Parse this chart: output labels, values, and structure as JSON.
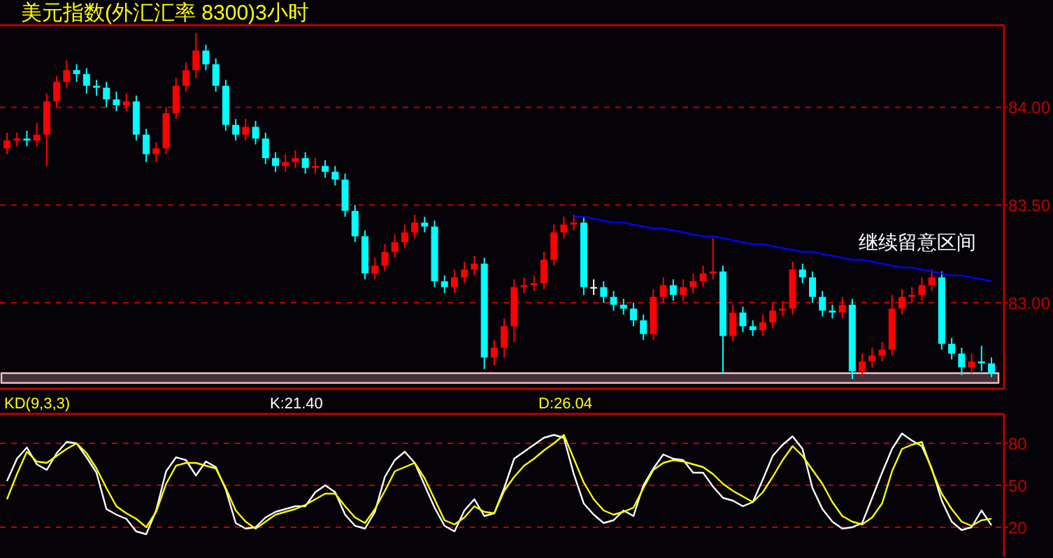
{
  "chart_data": [
    {
      "type": "candlestick",
      "title": "美元指数(外汇汇率 8300)3小时",
      "categories": [
        null,
        null,
        null,
        null,
        null,
        null,
        null,
        null,
        null,
        null,
        null,
        null,
        null,
        null,
        null,
        null,
        null,
        null,
        null,
        null,
        null,
        null,
        null,
        null,
        null,
        null,
        null,
        null,
        null,
        null,
        null,
        null,
        null,
        null,
        null,
        null,
        null,
        null,
        null,
        null,
        null,
        null,
        null,
        null,
        null,
        null,
        null,
        null,
        null,
        null,
        null,
        null,
        null,
        null,
        null,
        null,
        null,
        null,
        null,
        null,
        null,
        null,
        null,
        null,
        null,
        null,
        null,
        null,
        null,
        null,
        null,
        null,
        null,
        null,
        null,
        null,
        null,
        null,
        null,
        null,
        null,
        null,
        null,
        null,
        null,
        null,
        null,
        null,
        null,
        null,
        null,
        null,
        null,
        null,
        null,
        null,
        null,
        null,
        null,
        null
      ],
      "ohlc": [
        [
          83.79,
          83.87,
          83.76,
          83.83
        ],
        [
          83.83,
          83.87,
          83.8,
          83.84
        ],
        [
          83.84,
          83.88,
          83.8,
          83.83
        ],
        [
          83.83,
          83.92,
          83.8,
          83.86
        ],
        [
          83.86,
          84.07,
          83.7,
          84.03
        ],
        [
          84.03,
          84.16,
          84.0,
          84.13
        ],
        [
          84.13,
          84.24,
          84.1,
          84.19
        ],
        [
          84.19,
          84.22,
          84.13,
          84.17
        ],
        [
          84.17,
          84.2,
          84.07,
          84.11
        ],
        [
          84.11,
          84.14,
          84.06,
          84.1
        ],
        [
          84.1,
          84.13,
          84.0,
          84.04
        ],
        [
          84.04,
          84.08,
          83.98,
          84.01
        ],
        [
          84.01,
          84.07,
          83.98,
          84.03
        ],
        [
          84.03,
          84.06,
          83.83,
          83.86
        ],
        [
          83.86,
          83.89,
          83.72,
          83.76
        ],
        [
          83.76,
          83.82,
          83.72,
          83.79
        ],
        [
          83.79,
          84.0,
          83.76,
          83.97
        ],
        [
          83.97,
          84.15,
          83.94,
          84.11
        ],
        [
          84.11,
          84.23,
          84.08,
          84.19
        ],
        [
          84.19,
          84.38,
          84.15,
          84.29
        ],
        [
          84.29,
          84.32,
          84.19,
          84.22
        ],
        [
          84.22,
          84.25,
          84.08,
          84.11
        ],
        [
          84.11,
          84.14,
          83.88,
          83.91
        ],
        [
          83.91,
          83.94,
          83.83,
          83.86
        ],
        [
          83.86,
          83.94,
          83.83,
          83.9
        ],
        [
          83.9,
          83.93,
          83.81,
          83.84
        ],
        [
          83.84,
          83.87,
          83.71,
          83.74
        ],
        [
          83.74,
          83.77,
          83.67,
          83.7
        ],
        [
          83.7,
          83.76,
          83.67,
          83.72
        ],
        [
          83.72,
          83.78,
          83.69,
          83.74
        ],
        [
          83.74,
          83.77,
          83.66,
          83.69
        ],
        [
          83.69,
          83.74,
          83.66,
          83.7
        ],
        [
          83.7,
          83.73,
          83.64,
          83.67
        ],
        [
          83.67,
          83.7,
          83.6,
          83.63
        ],
        [
          83.63,
          83.66,
          83.44,
          83.47
        ],
        [
          83.47,
          83.5,
          83.31,
          83.34
        ],
        [
          83.34,
          83.37,
          83.12,
          83.15
        ],
        [
          83.15,
          83.23,
          83.12,
          83.19
        ],
        [
          83.19,
          83.3,
          83.16,
          83.26
        ],
        [
          83.26,
          83.35,
          83.23,
          83.31
        ],
        [
          83.31,
          83.4,
          83.28,
          83.36
        ],
        [
          83.36,
          83.45,
          83.33,
          83.41
        ],
        [
          83.41,
          83.44,
          83.36,
          83.39
        ],
        [
          83.39,
          83.42,
          83.08,
          83.11
        ],
        [
          83.11,
          83.14,
          83.05,
          83.08
        ],
        [
          83.08,
          83.17,
          83.05,
          83.13
        ],
        [
          83.13,
          83.21,
          83.1,
          83.17
        ],
        [
          83.17,
          83.24,
          83.14,
          83.2
        ],
        [
          83.2,
          83.23,
          82.66,
          82.72
        ],
        [
          82.72,
          82.81,
          82.68,
          82.77
        ],
        [
          82.77,
          82.92,
          82.72,
          82.88
        ],
        [
          82.88,
          83.12,
          82.8,
          83.08
        ],
        [
          83.08,
          83.13,
          83.05,
          83.09
        ],
        [
          83.09,
          83.14,
          83.06,
          83.1
        ],
        [
          83.1,
          83.26,
          83.07,
          83.22
        ],
        [
          83.22,
          83.4,
          83.19,
          83.36
        ],
        [
          83.36,
          83.44,
          83.33,
          83.4
        ],
        [
          83.4,
          83.45,
          83.37,
          83.41
        ],
        [
          83.41,
          83.44,
          83.04,
          83.08
        ],
        [
          83.08,
          83.12,
          83.04,
          83.08
        ],
        [
          83.08,
          83.11,
          83.0,
          83.03
        ],
        [
          83.03,
          83.06,
          82.96,
          82.99
        ],
        [
          82.99,
          83.02,
          82.94,
          82.97
        ],
        [
          82.97,
          83.0,
          82.88,
          82.91
        ],
        [
          82.91,
          82.94,
          82.81,
          82.84
        ],
        [
          82.84,
          83.07,
          82.81,
          83.03
        ],
        [
          83.03,
          83.13,
          83.0,
          83.09
        ],
        [
          83.09,
          83.12,
          83.01,
          83.04
        ],
        [
          83.04,
          83.12,
          83.01,
          83.08
        ],
        [
          83.08,
          83.15,
          83.05,
          83.11
        ],
        [
          83.11,
          83.19,
          83.08,
          83.15
        ],
        [
          83.15,
          83.33,
          83.12,
          83.16
        ],
        [
          83.16,
          83.19,
          82.64,
          82.83
        ],
        [
          82.83,
          82.99,
          82.8,
          82.95
        ],
        [
          82.95,
          82.98,
          82.85,
          82.88
        ],
        [
          82.88,
          82.91,
          82.83,
          82.86
        ],
        [
          82.86,
          82.94,
          82.83,
          82.9
        ],
        [
          82.9,
          83.0,
          82.87,
          82.96
        ],
        [
          82.96,
          83.01,
          82.93,
          82.97
        ],
        [
          82.97,
          83.21,
          82.94,
          83.17
        ],
        [
          83.17,
          83.2,
          83.1,
          83.13
        ],
        [
          83.13,
          83.16,
          83.0,
          83.03
        ],
        [
          83.03,
          83.06,
          82.93,
          82.96
        ],
        [
          82.96,
          82.99,
          82.92,
          82.95
        ],
        [
          82.95,
          83.03,
          82.92,
          82.99
        ],
        [
          82.99,
          83.02,
          82.61,
          82.65
        ],
        [
          82.65,
          82.74,
          82.62,
          82.7
        ],
        [
          82.7,
          82.77,
          82.67,
          82.73
        ],
        [
          82.73,
          82.8,
          82.7,
          82.76
        ],
        [
          82.76,
          83.04,
          82.73,
          82.97
        ],
        [
          82.97,
          83.07,
          82.94,
          83.03
        ],
        [
          83.03,
          83.08,
          83.0,
          83.04
        ],
        [
          83.04,
          83.13,
          83.01,
          83.09
        ],
        [
          83.09,
          83.17,
          83.06,
          83.13
        ],
        [
          83.13,
          83.16,
          82.76,
          82.79
        ],
        [
          82.79,
          82.82,
          82.71,
          82.74
        ],
        [
          82.74,
          82.77,
          82.63,
          82.67
        ],
        [
          82.67,
          82.74,
          82.64,
          82.7
        ],
        [
          82.7,
          82.78,
          82.65,
          82.69
        ],
        [
          82.69,
          82.72,
          82.62,
          82.64
        ]
      ],
      "colors": [
        "#ff0000",
        "#ff0000",
        "#00ffff",
        "#ff0000",
        "#ff0000",
        "#ff0000",
        "#ff0000",
        "#00ffff",
        "#00ffff",
        "#00ffff",
        "#00ffff",
        "#00ffff",
        "#ff0000",
        "#00ffff",
        "#00ffff",
        "#ff0000",
        "#ff0000",
        "#ff0000",
        "#ff0000",
        "#ff0000",
        "#00ffff",
        "#00ffff",
        "#00ffff",
        "#00ffff",
        "#ff0000",
        "#00ffff",
        "#00ffff",
        "#00ffff",
        "#ff0000",
        "#ff0000",
        "#00ffff",
        "#ff0000",
        "#00ffff",
        "#00ffff",
        "#00ffff",
        "#00ffff",
        "#00ffff",
        "#ff0000",
        "#ff0000",
        "#ff0000",
        "#ff0000",
        "#ff0000",
        "#00ffff",
        "#00ffff",
        "#00ffff",
        "#ff0000",
        "#ff0000",
        "#ff0000",
        "#00ffff",
        "#ff0000",
        "#ff0000",
        "#ff0000",
        "#ff0000",
        "#ff0000",
        "#ff0000",
        "#ff0000",
        "#ff0000",
        "#ff0000",
        "#00ffff",
        "#ffffff",
        "#00ffff",
        "#00ffff",
        "#00ffff",
        "#00ffff",
        "#00ffff",
        "#ff0000",
        "#ff0000",
        "#00ffff",
        "#ff0000",
        "#ff0000",
        "#ff0000",
        "#ff0000",
        "#00ffff",
        "#ff0000",
        "#00ffff",
        "#00ffff",
        "#ff0000",
        "#ff0000",
        "#ff0000",
        "#ff0000",
        "#00ffff",
        "#00ffff",
        "#00ffff",
        "#00ffff",
        "#ff0000",
        "#00ffff",
        "#ff0000",
        "#ff0000",
        "#ff0000",
        "#ff0000",
        "#ff0000",
        "#ff0000",
        "#ff0000",
        "#ff0000",
        "#00ffff",
        "#00ffff",
        "#00ffff",
        "#ff0000",
        "#00ffff",
        "#00ffff"
      ],
      "series": [
        {
          "type": "line",
          "color": "#0000ff",
          "values": [
            null,
            null,
            null,
            null,
            null,
            null,
            null,
            null,
            null,
            null,
            null,
            null,
            null,
            null,
            null,
            null,
            null,
            null,
            null,
            null,
            null,
            null,
            null,
            null,
            null,
            null,
            null,
            null,
            null,
            null,
            null,
            null,
            null,
            null,
            null,
            null,
            null,
            null,
            null,
            null,
            null,
            null,
            null,
            null,
            null,
            null,
            null,
            null,
            null,
            null,
            null,
            null,
            null,
            null,
            null,
            null,
            null,
            83.44,
            83.44,
            83.43,
            83.42,
            83.41,
            83.41,
            83.4,
            83.39,
            83.38,
            83.38,
            83.37,
            83.36,
            83.35,
            83.34,
            83.34,
            83.33,
            83.32,
            83.31,
            83.3,
            83.3,
            83.29,
            83.28,
            83.27,
            83.26,
            83.26,
            83.25,
            83.24,
            83.23,
            83.22,
            83.22,
            83.21,
            83.2,
            83.19,
            83.18,
            83.18,
            83.17,
            83.16,
            83.15,
            83.14,
            83.14,
            83.13,
            83.12,
            83.11
          ]
        }
      ],
      "bands": [
        {
          "axis": "y",
          "from": 82.59,
          "to": 82.64,
          "color": "#ffc0cb"
        }
      ],
      "annotations": [
        "继续留意区间"
      ],
      "ylim": [
        82.56,
        84.42
      ],
      "yticks": [
        {
          "value": 83.0,
          "label": "83.00"
        },
        {
          "value": 83.5,
          "label": "83.50"
        },
        {
          "value": 84.0,
          "label": "84.00"
        }
      ],
      "grid": "y",
      "tick_labels": "y"
    },
    {
      "type": "line",
      "title": "KD(9,3,3)",
      "categories": [
        null,
        null,
        null,
        null,
        null,
        null,
        null,
        null,
        null,
        null,
        null,
        null,
        null,
        null,
        null,
        null,
        null,
        null,
        null,
        null,
        null,
        null,
        null,
        null,
        null,
        null,
        null,
        null,
        null,
        null,
        null,
        null,
        null,
        null,
        null,
        null,
        null,
        null,
        null,
        null,
        null,
        null,
        null,
        null,
        null,
        null,
        null,
        null,
        null,
        null,
        null,
        null,
        null,
        null,
        null,
        null,
        null,
        null,
        null,
        null,
        null,
        null,
        null,
        null,
        null,
        null,
        null,
        null,
        null,
        null,
        null,
        null,
        null,
        null,
        null,
        null,
        null,
        null,
        null,
        null,
        null,
        null,
        null,
        null,
        null,
        null,
        null,
        null,
        null,
        null,
        null,
        null,
        null,
        null,
        null,
        null,
        null,
        null,
        null,
        null
      ],
      "series": [
        {
          "name": "K:21.40",
          "color": "#ffffff",
          "values": [
            53,
            69,
            77,
            65,
            61,
            73,
            81,
            80,
            70,
            59,
            33,
            29,
            26,
            17,
            15,
            32,
            60,
            70,
            68,
            57,
            67,
            63,
            47,
            23,
            19,
            20,
            27,
            31,
            33,
            35,
            35,
            45,
            50,
            45,
            29,
            21,
            19,
            31,
            56,
            68,
            74,
            66,
            50,
            34,
            21,
            17,
            32,
            40,
            28,
            30,
            48,
            69,
            74,
            79,
            84,
            86,
            84,
            58,
            37,
            29,
            23,
            25,
            32,
            28,
            50,
            62,
            72,
            69,
            68,
            59,
            59,
            49,
            41,
            39,
            35,
            38,
            54,
            71,
            79,
            85,
            76,
            48,
            33,
            24,
            19,
            20,
            23,
            41,
            59,
            76,
            87,
            82,
            78,
            62,
            39,
            24,
            18,
            20,
            32,
            21.4
          ]
        },
        {
          "name": "D:26.04",
          "color": "#ffff00",
          "values": [
            40,
            58,
            74,
            67,
            66,
            71,
            76,
            80,
            73,
            62,
            48,
            35,
            30,
            26,
            20,
            31,
            51,
            64,
            66,
            66,
            64,
            62,
            48,
            32,
            24,
            19,
            24,
            29,
            31,
            33,
            36,
            40,
            44,
            44,
            35,
            27,
            23,
            33,
            46,
            60,
            63,
            66,
            55,
            40,
            25,
            22,
            27,
            35,
            31,
            30,
            46,
            56,
            64,
            69,
            75,
            80,
            86,
            69,
            52,
            40,
            32,
            29,
            31,
            34,
            48,
            61,
            66,
            68,
            67,
            65,
            63,
            58,
            51,
            46,
            42,
            38,
            45,
            56,
            68,
            78,
            71,
            61,
            51,
            38,
            28,
            24,
            22,
            27,
            37,
            60,
            76,
            79,
            81,
            61,
            44,
            33,
            24,
            21,
            25,
            26.04
          ]
        }
      ],
      "ylim": [
        -1,
        101
      ],
      "yticks": [
        20,
        50,
        80
      ],
      "grid": "y",
      "tick_labels": "y"
    }
  ]
}
